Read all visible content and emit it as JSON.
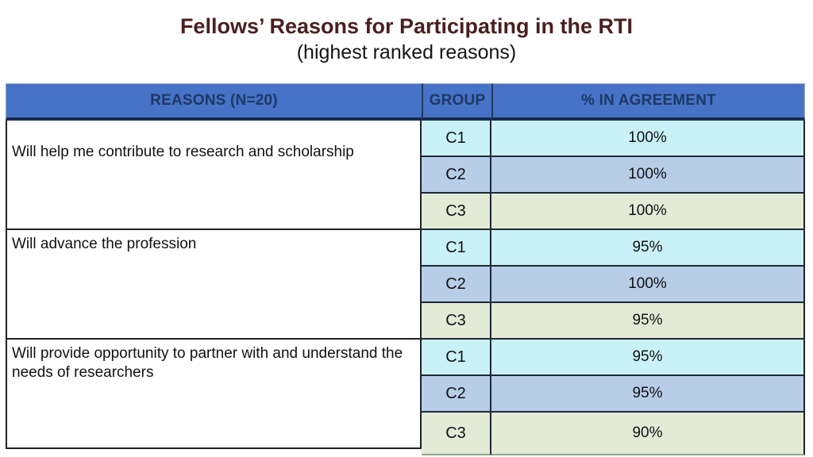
{
  "slide": {
    "title_line1": "Fellows’ Reasons for Participating in the RTI",
    "title_line2": "(highest ranked reasons)"
  },
  "table": {
    "headers": {
      "reasons": "REASONS (N=20)",
      "group": "GROUP",
      "agreement": "% IN AGREEMENT"
    },
    "sections": [
      {
        "reason": "Will help me contribute to research and scholarship",
        "rows": [
          {
            "group": "C1",
            "agreement": "100%"
          },
          {
            "group": "C2",
            "agreement": "100%"
          },
          {
            "group": "C3",
            "agreement": "100%"
          }
        ]
      },
      {
        "reason": "Will advance the profession",
        "rows": [
          {
            "group": "C1",
            "agreement": "95%"
          },
          {
            "group": "C2",
            "agreement": "100%"
          },
          {
            "group": "C3",
            "agreement": "95%"
          }
        ]
      },
      {
        "reason": "Will provide opportunity to partner with and understand the needs of researchers",
        "rows": [
          {
            "group": "C1",
            "agreement": "95%"
          },
          {
            "group": "C2",
            "agreement": "95%"
          },
          {
            "group": "C3",
            "agreement": "90%"
          }
        ]
      }
    ]
  },
  "colors": {
    "header_background": "#4673C8",
    "header_text": "#1F3864",
    "row_c1_background": "#C9F2F8",
    "row_c2_background": "#B7CDE8",
    "row_c3_background": "#E3EBD7",
    "title_color": "#4a1f1f",
    "border_dark": "#222222"
  }
}
